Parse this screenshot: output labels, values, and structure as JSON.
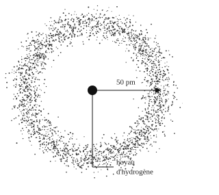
{
  "labels": {
    "radius": "50 pm",
    "nucleus": [
      "noyau",
      "d'hydrogène"
    ]
  }
}
